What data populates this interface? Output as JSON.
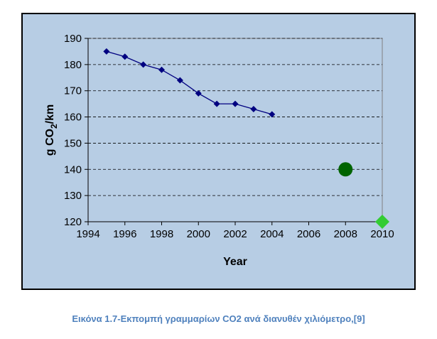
{
  "caption": "Εικόνα 1.7-Εκπομπή γραμμαρίων CO2 ανά διανυθέν χιλιόμετρο,[9]",
  "colors": {
    "outer_background": "#b7cde4",
    "plot_background": "#b7cde4",
    "frame": "#000000",
    "series_line": "#000080",
    "target_2008": "#006400",
    "target_2010": "#33cc33",
    "caption_text": "#4f81bd"
  },
  "chart_data": {
    "type": "scatter",
    "title": "",
    "xlabel": "Year",
    "ylabel": "g CO2/km",
    "xlim": [
      1994,
      2010
    ],
    "ylim": [
      120,
      190
    ],
    "x_ticks": [
      1994,
      1996,
      1998,
      2000,
      2002,
      2004,
      2006,
      2008,
      2010
    ],
    "y_ticks": [
      120,
      130,
      140,
      150,
      160,
      170,
      180,
      190
    ],
    "grid": "horizontal dashed",
    "legend": "none",
    "series": [
      {
        "marker": "diamond",
        "line": true,
        "color": "#000080",
        "points": [
          {
            "x": 1995,
            "y": 185
          },
          {
            "x": 1996,
            "y": 183
          },
          {
            "x": 1997,
            "y": 180
          },
          {
            "x": 1998,
            "y": 178
          },
          {
            "x": 1999,
            "y": 174
          },
          {
            "x": 2000,
            "y": 169
          },
          {
            "x": 2001,
            "y": 165
          },
          {
            "x": 2002,
            "y": 165
          },
          {
            "x": 2003,
            "y": 163
          },
          {
            "x": 2004,
            "y": 161
          }
        ]
      },
      {
        "marker": "circle",
        "line": false,
        "color": "#006400",
        "points": [
          {
            "x": 2008,
            "y": 140
          }
        ]
      },
      {
        "marker": "diamond",
        "line": false,
        "color": "#33cc33",
        "points": [
          {
            "x": 2010,
            "y": 120
          }
        ]
      }
    ]
  }
}
